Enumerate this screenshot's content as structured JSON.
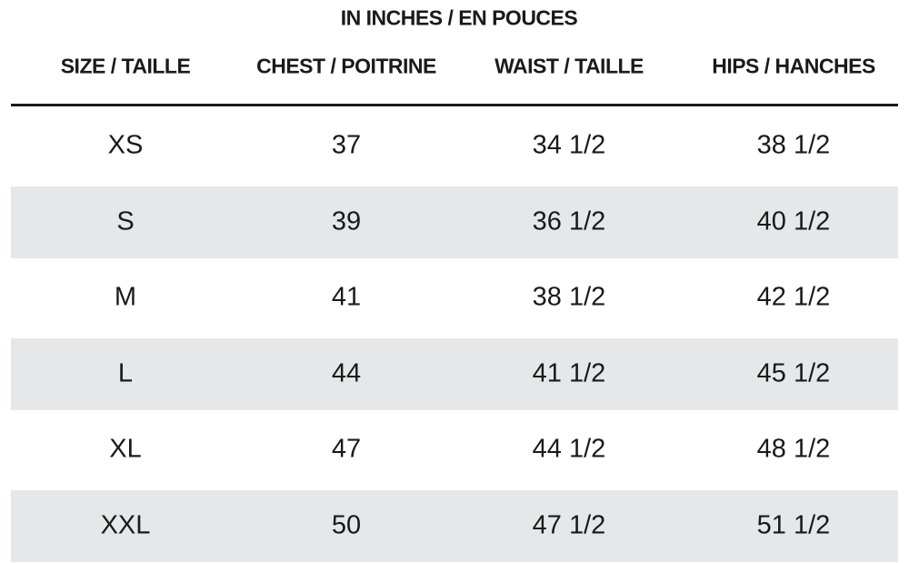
{
  "table": {
    "caption": "IN INCHES / EN POUCES",
    "headers": [
      "SIZE / TAILLE",
      "CHEST / POITRINE",
      "WAIST / TAILLE",
      "HIPS / HANCHES"
    ],
    "rows": [
      [
        "XS",
        "37",
        "34 1/2",
        "38 1/2"
      ],
      [
        "S",
        "39",
        "36 1/2",
        "40 1/2"
      ],
      [
        "M",
        "41",
        "38 1/2",
        "42 1/2"
      ],
      [
        "L",
        "44",
        "41 1/2",
        "45 1/2"
      ],
      [
        "XL",
        "47",
        "44 1/2",
        "48 1/2"
      ],
      [
        "XXL",
        "50",
        "47 1/2",
        "51 1/2"
      ]
    ]
  }
}
